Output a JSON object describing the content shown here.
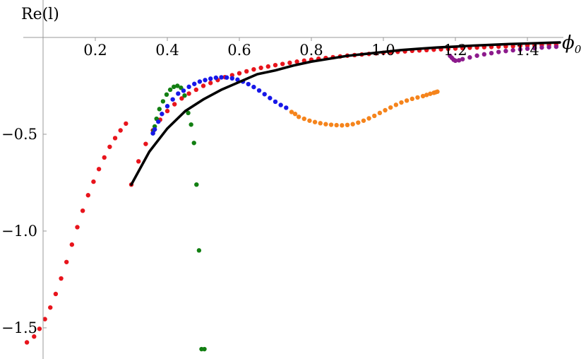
{
  "chart_data": {
    "type": "scatter",
    "xlabel": "ϕ",
    "xlabel_subscript": "0",
    "ylabel": "Re(l)",
    "xlim": [
      0.0,
      1.5
    ],
    "ylim": [
      -1.65,
      0.0
    ],
    "x_ticks": [
      0.2,
      0.4,
      0.6,
      0.8,
      1.0,
      1.2,
      1.4
    ],
    "x_tick_labels": [
      "0.2",
      "0.4",
      "0.6",
      "0.8",
      "1.0",
      "1.2",
      "1.4"
    ],
    "y_ticks": [
      -0.5,
      -1.0,
      -1.5
    ],
    "y_tick_labels": [
      "−0.5",
      "−1.0",
      "−1.5"
    ],
    "grid": false,
    "legend": "none",
    "colors": {
      "red": "#e8141c",
      "green": "#127f12",
      "blue": "#1717e8",
      "orange": "#f5841c",
      "purple": "#8c1a8c",
      "curve": "#000000"
    },
    "curve": {
      "color": "black",
      "x": [
        0.3,
        0.35,
        0.4,
        0.45,
        0.5,
        0.55,
        0.6,
        0.65,
        0.7,
        0.75,
        0.8,
        0.85,
        0.9,
        0.95,
        1.0,
        1.05,
        1.1,
        1.15,
        1.2,
        1.25,
        1.3,
        1.35,
        1.4,
        1.45,
        1.49
      ],
      "y": [
        -0.76,
        -0.59,
        -0.47,
        -0.38,
        -0.32,
        -0.27,
        -0.23,
        -0.19,
        -0.17,
        -0.145,
        -0.125,
        -0.11,
        -0.095,
        -0.085,
        -0.075,
        -0.065,
        -0.058,
        -0.052,
        -0.047,
        -0.042,
        -0.038,
        -0.034,
        -0.031,
        -0.028,
        -0.026
      ]
    },
    "series": [
      {
        "color": "red",
        "x": [
          0.01,
          0.03,
          0.045,
          0.06,
          0.075,
          0.09,
          0.105,
          0.12,
          0.135,
          0.15,
          0.165,
          0.18,
          0.195,
          0.21,
          0.225,
          0.24,
          0.255,
          0.27,
          0.285,
          0.3,
          0.32,
          0.34,
          0.36,
          0.38,
          0.4,
          0.42,
          0.44,
          0.46,
          0.48,
          0.5,
          0.52,
          0.54,
          0.56,
          0.58,
          0.6,
          0.62,
          0.64,
          0.66,
          0.68,
          0.7,
          0.72,
          0.74,
          0.76,
          0.78,
          0.8,
          0.82,
          0.84,
          0.86,
          0.88,
          0.9,
          0.92,
          0.94,
          0.96,
          0.98,
          1.0,
          1.02,
          1.04,
          1.06,
          1.08,
          1.1,
          1.12,
          1.14,
          1.16,
          1.18,
          1.2,
          1.22,
          1.24,
          1.26,
          1.28,
          1.3,
          1.32,
          1.34,
          1.36,
          1.38,
          1.4,
          1.42,
          1.44,
          1.46,
          1.48
        ],
        "y": [
          -1.575,
          -1.545,
          -1.505,
          -1.455,
          -1.395,
          -1.325,
          -1.245,
          -1.16,
          -1.07,
          -0.98,
          -0.895,
          -0.815,
          -0.745,
          -0.68,
          -0.62,
          -0.565,
          -0.52,
          -0.48,
          -0.445,
          -0.76,
          -0.64,
          -0.55,
          -0.48,
          -0.425,
          -0.38,
          -0.345,
          -0.315,
          -0.29,
          -0.27,
          -0.25,
          -0.235,
          -0.22,
          -0.205,
          -0.195,
          -0.185,
          -0.175,
          -0.165,
          -0.157,
          -0.15,
          -0.143,
          -0.137,
          -0.131,
          -0.125,
          -0.12,
          -0.115,
          -0.11,
          -0.106,
          -0.102,
          -0.098,
          -0.094,
          -0.091,
          -0.088,
          -0.085,
          -0.082,
          -0.079,
          -0.076,
          -0.074,
          -0.072,
          -0.069,
          -0.067,
          -0.065,
          -0.063,
          -0.061,
          -0.059,
          -0.057,
          -0.055,
          -0.053,
          -0.052,
          -0.05,
          -0.049,
          -0.047,
          -0.046,
          -0.045,
          -0.043,
          -0.042,
          -0.041,
          -0.04,
          -0.039,
          -0.038
        ]
      },
      {
        "color": "green",
        "x": [
          0.36,
          0.362,
          0.365,
          0.37,
          0.378,
          0.388,
          0.398,
          0.408,
          0.418,
          0.428,
          0.438,
          0.448,
          0.458,
          0.466,
          0.474,
          0.481,
          0.488,
          0.495,
          0.503
        ],
        "y": [
          -0.495,
          -0.48,
          -0.46,
          -0.42,
          -0.37,
          -0.33,
          -0.295,
          -0.27,
          -0.255,
          -0.25,
          -0.26,
          -0.3,
          -0.39,
          -0.45,
          -0.545,
          -0.76,
          -1.1,
          -1.61,
          -1.61
        ]
      },
      {
        "color": "blue",
        "x": [
          0.36,
          0.365,
          0.375,
          0.385,
          0.4,
          0.415,
          0.43,
          0.445,
          0.46,
          0.475,
          0.49,
          0.505,
          0.52,
          0.535,
          0.55,
          0.565,
          0.58,
          0.595,
          0.61,
          0.625,
          0.64,
          0.655,
          0.67,
          0.685,
          0.7,
          0.715,
          0.73
        ],
        "y": [
          -0.495,
          -0.475,
          -0.435,
          -0.395,
          -0.355,
          -0.32,
          -0.29,
          -0.275,
          -0.255,
          -0.24,
          -0.228,
          -0.22,
          -0.213,
          -0.208,
          -0.206,
          -0.207,
          -0.211,
          -0.218,
          -0.228,
          -0.241,
          -0.256,
          -0.274,
          -0.293,
          -0.313,
          -0.332,
          -0.349,
          -0.363
        ]
      },
      {
        "color": "orange",
        "x": [
          0.745,
          0.755,
          0.765,
          0.78,
          0.795,
          0.81,
          0.825,
          0.84,
          0.855,
          0.87,
          0.885,
          0.9,
          0.915,
          0.93,
          0.945,
          0.96,
          0.975,
          0.99,
          1.005,
          1.02,
          1.035,
          1.05,
          1.065,
          1.08,
          1.095,
          1.11,
          1.12,
          1.13,
          1.14,
          1.145,
          1.15
        ],
        "y": [
          -0.385,
          -0.395,
          -0.41,
          -0.42,
          -0.43,
          -0.437,
          -0.443,
          -0.448,
          -0.451,
          -0.453,
          -0.454,
          -0.452,
          -0.448,
          -0.44,
          -0.43,
          -0.418,
          -0.405,
          -0.39,
          -0.376,
          -0.362,
          -0.348,
          -0.336,
          -0.326,
          -0.317,
          -0.31,
          -0.303,
          -0.297,
          -0.291,
          -0.286,
          -0.283,
          -0.28
        ]
      },
      {
        "color": "purple",
        "x": [
          1.185,
          1.19,
          1.195,
          1.2,
          1.21,
          1.22,
          1.24,
          1.26,
          1.28,
          1.3,
          1.32,
          1.34,
          1.36,
          1.38,
          1.4,
          1.42,
          1.44,
          1.46,
          1.48
        ],
        "y": [
          -0.095,
          -0.105,
          -0.115,
          -0.12,
          -0.118,
          -0.112,
          -0.103,
          -0.094,
          -0.087,
          -0.081,
          -0.075,
          -0.07,
          -0.066,
          -0.062,
          -0.058,
          -0.055,
          -0.052,
          -0.05,
          -0.048
        ]
      }
    ]
  }
}
